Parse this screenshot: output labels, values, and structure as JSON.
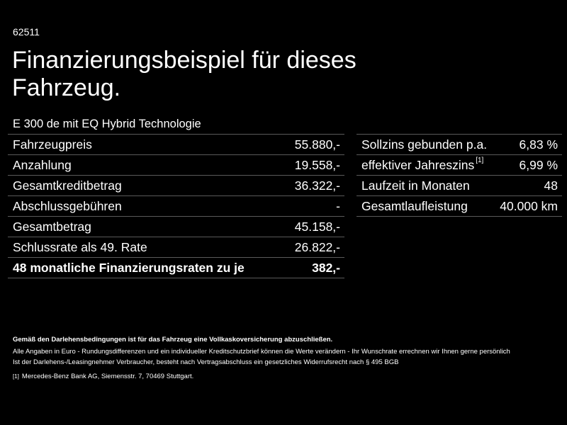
{
  "offer_code": "62511",
  "title": {
    "line1": "Finanzierungsbeispiel für dieses",
    "line2": "Fahrzeug."
  },
  "model": "E 300 de mit EQ Hybrid Technologie",
  "left_table": {
    "rows": [
      {
        "label": "Fahrzeugpreis",
        "value": "55.880,-"
      },
      {
        "label": "Anzahlung",
        "value": "19.558,-"
      },
      {
        "label": "Gesamtkreditbetrag",
        "value": "36.322,-"
      },
      {
        "label": "Abschlussgebühren",
        "value": "-"
      },
      {
        "label": "Gesamtbetrag",
        "value": "45.158,-"
      },
      {
        "label": "Schlussrate als 49. Rate",
        "value": "26.822,-"
      },
      {
        "label": "48 monatliche Finanzierungsraten zu je",
        "value": "382,-"
      }
    ]
  },
  "right_table": {
    "rows": [
      {
        "label": "Sollzins gebunden p.a.",
        "ref": "",
        "value": "6,83 %"
      },
      {
        "label": "effektiver Jahreszins",
        "ref": "[1]",
        "value": "6,99 %"
      },
      {
        "label": "Laufzeit in Monaten",
        "ref": "",
        "value": "48"
      },
      {
        "label": "Gesamtlaufleistung",
        "ref": "",
        "value": "40.000 km"
      }
    ]
  },
  "footer": {
    "insurance_note": "Gemäß den Darlehensbedingungen ist für das Fahrzeug eine Vollkaskoversicherung abzuschließen.",
    "disclaimer_1": "Alle Angaben in Euro - Rundungsdifferenzen und ein individueller Kreditschutzbrief können die Werte verändern - Ihr Wunschrate errechnen wir Ihnen gerne persönlich",
    "disclaimer_2": "Ist der Darlehens-/Leasingnehmer Verbraucher, besteht nach Vertragsabschluss ein gesetzliches Widerrufsrecht nach § 495 BGB",
    "footnote_ref": "[1]",
    "footnote_text": "Mercedes-Benz Bank AG, Siemensstr. 7, 70469 Stuttgart."
  }
}
